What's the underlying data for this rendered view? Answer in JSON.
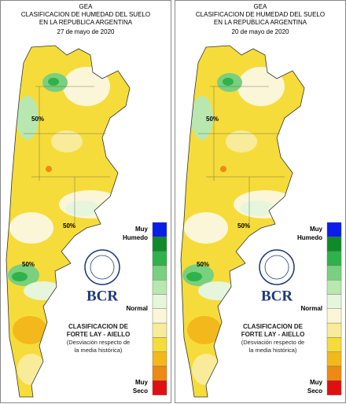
{
  "panels": [
    {
      "header": {
        "line1": "GEA",
        "line2": "CLASIFICACION DE HUMEDAD DEL SUELO",
        "line3": "EN LA REPUBLICA ARGENTINA",
        "date": "27 de mayo de 2020"
      },
      "contour_labels": [
        "50%",
        "50%",
        "50%"
      ],
      "legend": {
        "top_label_1": "Muy",
        "top_label_2": "Humedo",
        "middle_label": "Normal",
        "bottom_label_1": "Muy",
        "bottom_label_2": "Seco",
        "colors": [
          "#0a1ee8",
          "#0f8a2a",
          "#2fb24a",
          "#79d07e",
          "#b8e8b0",
          "#e6f6dc",
          "#fbf6d8",
          "#f8ec9a",
          "#f6dc3a",
          "#f3b81c",
          "#ee8a12",
          "#e01010"
        ]
      },
      "logo": "BCR",
      "caption": [
        "CLASIFICACION DE",
        "FORTE LAY - AIELLO",
        "(Desviación respecto de",
        "la media histórica)"
      ]
    },
    {
      "header": {
        "line1": "GEA",
        "line2": "CLASIFICACION DE HUMEDAD DEL SUELO",
        "line3": "EN LA REPUBLICA ARGENTINA",
        "date": "20 de mayo de 2020"
      },
      "contour_labels": [
        "50%",
        "50%",
        "50%"
      ],
      "legend": {
        "top_label_1": "Muy",
        "top_label_2": "Humedo",
        "middle_label": "Normal",
        "bottom_label_1": "Muy",
        "bottom_label_2": "Seco",
        "colors": [
          "#0a1ee8",
          "#0f8a2a",
          "#2fb24a",
          "#79d07e",
          "#b8e8b0",
          "#e6f6dc",
          "#fbf6d8",
          "#f8ec9a",
          "#f6dc3a",
          "#f3b81c",
          "#ee8a12",
          "#e01010"
        ]
      },
      "logo": "BCR",
      "caption": [
        "CLASIFICACION DE",
        "FORTE LAY - AIELLO",
        "(Desviación respecto de",
        "la media histórica)"
      ]
    }
  ]
}
